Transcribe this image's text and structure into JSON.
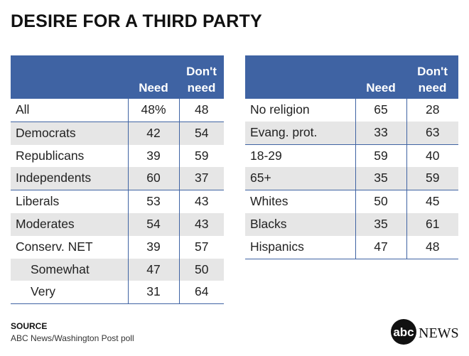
{
  "title": "DESIRE FOR A THIRD PARTY",
  "chart_data": {
    "type": "table",
    "columns": [
      "Need",
      "Don't need"
    ],
    "tables": [
      {
        "rows": [
          {
            "label": "All",
            "need": "48%",
            "dont_need": "48"
          },
          {
            "label": "Democrats",
            "need": "42",
            "dont_need": "54"
          },
          {
            "label": "Republicans",
            "need": "39",
            "dont_need": "59"
          },
          {
            "label": "Independents",
            "need": "60",
            "dont_need": "37"
          },
          {
            "label": "Liberals",
            "need": "53",
            "dont_need": "43"
          },
          {
            "label": "Moderates",
            "need": "54",
            "dont_need": "43"
          },
          {
            "label": "Conserv. NET",
            "need": "39",
            "dont_need": "57"
          },
          {
            "label": "Somewhat",
            "need": "47",
            "dont_need": "50"
          },
          {
            "label": "Very",
            "need": "31",
            "dont_need": "64"
          }
        ]
      },
      {
        "rows": [
          {
            "label": "No religion",
            "need": "65",
            "dont_need": "28"
          },
          {
            "label": "Evang. prot.",
            "need": "33",
            "dont_need": "63"
          },
          {
            "label": "18-29",
            "need": "59",
            "dont_need": "40"
          },
          {
            "label": "65+",
            "need": "35",
            "dont_need": "59"
          },
          {
            "label": "Whites",
            "need": "50",
            "dont_need": "45"
          },
          {
            "label": "Blacks",
            "need": "35",
            "dont_need": "61"
          },
          {
            "label": "Hispanics",
            "need": "47",
            "dont_need": "48"
          }
        ]
      }
    ]
  },
  "header": {
    "need": "Need",
    "dont_need_line1": "Don't",
    "dont_need_line2": "need"
  },
  "source": {
    "label": "SOURCE",
    "text": "ABC News/Washington Post poll"
  },
  "logo": {
    "abc": "abc",
    "news": "NEWS"
  },
  "colors": {
    "header_bg": "#3f63a3",
    "shade": "#e6e6e6"
  }
}
